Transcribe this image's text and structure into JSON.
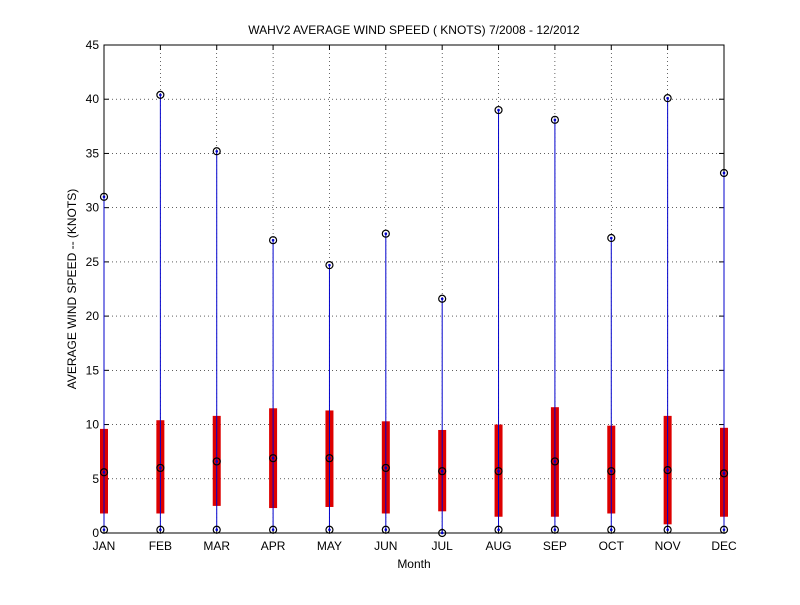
{
  "chart_data": {
    "type": "boxplot",
    "title": "WAHV2  AVERAGE WIND SPEED ( KNOTS) 7/2008 - 12/2012",
    "xlabel": "Month",
    "ylabel": "AVERAGE WIND SPEED -- (KNOTS)",
    "ylim": [
      0,
      45
    ],
    "yticks": [
      0,
      5,
      10,
      15,
      20,
      25,
      30,
      35,
      40,
      45
    ],
    "grid": true,
    "colors": {
      "whisker": "#0000cc",
      "box": "#dd0000",
      "marker": "#000000"
    },
    "categories": [
      "JAN",
      "FEB",
      "MAR",
      "APR",
      "MAY",
      "JUN",
      "JUL",
      "AUG",
      "SEP",
      "OCT",
      "NOV",
      "DEC"
    ],
    "series": [
      {
        "min": 0.3,
        "q1": 1.8,
        "median": 5.6,
        "q3": 9.6,
        "max": 31.0
      },
      {
        "min": 0.3,
        "q1": 1.8,
        "median": 6.0,
        "q3": 10.4,
        "max": 40.4
      },
      {
        "min": 0.3,
        "q1": 2.5,
        "median": 6.6,
        "q3": 10.8,
        "max": 35.2
      },
      {
        "min": 0.3,
        "q1": 2.3,
        "median": 6.9,
        "q3": 11.5,
        "max": 27.0
      },
      {
        "min": 0.3,
        "q1": 2.4,
        "median": 6.9,
        "q3": 11.3,
        "max": 24.7
      },
      {
        "min": 0.3,
        "q1": 1.8,
        "median": 6.0,
        "q3": 10.3,
        "max": 27.6
      },
      {
        "min": 0.0,
        "q1": 2.0,
        "median": 5.7,
        "q3": 9.5,
        "max": 21.6
      },
      {
        "min": 0.3,
        "q1": 1.5,
        "median": 5.7,
        "q3": 10.0,
        "max": 39.0
      },
      {
        "min": 0.3,
        "q1": 1.5,
        "median": 6.6,
        "q3": 11.6,
        "max": 38.1
      },
      {
        "min": 0.3,
        "q1": 1.8,
        "median": 5.7,
        "q3": 9.9,
        "max": 27.2
      },
      {
        "min": 0.3,
        "q1": 0.8,
        "median": 5.8,
        "q3": 10.8,
        "max": 40.1
      },
      {
        "min": 0.3,
        "q1": 1.5,
        "median": 5.5,
        "q3": 9.7,
        "max": 33.2
      }
    ]
  }
}
